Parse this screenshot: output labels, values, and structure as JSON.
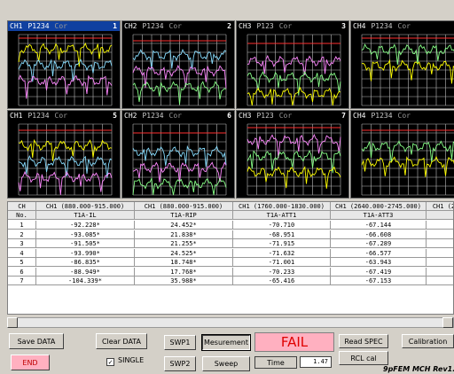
{
  "panels": [
    {
      "channel": "CH1",
      "ports": "P1234",
      "mode": "Cor",
      "index": "1"
    },
    {
      "channel": "CH2",
      "ports": "P1234",
      "mode": "Cor",
      "index": "2"
    },
    {
      "channel": "CH3",
      "ports": "P123",
      "mode": "Cor",
      "index": "3"
    },
    {
      "channel": "CH4",
      "ports": "P1234",
      "mode": "Cor",
      "index": "4"
    },
    {
      "channel": "CH1",
      "ports": "P1234",
      "mode": "Cor",
      "index": "5"
    },
    {
      "channel": "CH2",
      "ports": "P1234",
      "mode": "Cor",
      "index": "6"
    },
    {
      "channel": "CH3",
      "ports": "P123",
      "mode": "Cor",
      "index": "7"
    },
    {
      "channel": "CH4",
      "ports": "P1234",
      "mode": "Cor",
      "index": "8"
    }
  ],
  "table": {
    "header1": [
      "CH",
      "CH1 (880.000-915.000)",
      "CH1 (880.000-915.000)",
      "CH1 (1760.000-1830.000)",
      "CH1 (2640.000-2745.000)",
      "CH1 (2"
    ],
    "header2": [
      "No.",
      "T1A-IL",
      "T1A-RIP",
      "T1A-ATT1",
      "T1A-ATT3"
    ],
    "rows": [
      [
        "1",
        "-92.228*",
        "24.452*",
        "-70.710",
        "-67.144"
      ],
      [
        "2",
        "-93.085*",
        "21.838*",
        "-68.951",
        "-66.608"
      ],
      [
        "3",
        "-91.505*",
        "21.255*",
        "-71.915",
        "-67.289"
      ],
      [
        "4",
        "-93.990*",
        "24.525*",
        "-71.632",
        "-66.577"
      ],
      [
        "5",
        "-86.835*",
        "18.748*",
        "-71.001",
        "-63.943"
      ],
      [
        "6",
        "-88.949*",
        "17.768*",
        "-70.233",
        "-67.419"
      ],
      [
        "7",
        "-104.339*",
        "35.988*",
        "-65.416",
        "-67.153"
      ]
    ]
  },
  "buttons": {
    "save": "Save DATA",
    "clear": "Clear DATA",
    "swp1": "SWP1",
    "measurement": "Mesurement",
    "status": "FAIL",
    "read_spec": "Read SPEC",
    "calibration": "Calibration",
    "end": "END",
    "single": "SINGLE",
    "swp2": "SWP2",
    "sweep": "Sweep",
    "time_label": "Time",
    "time_value": "1.47",
    "rcl_cal": "RCL cal"
  },
  "footer": "9pFEM MCH Rev1.0"
}
